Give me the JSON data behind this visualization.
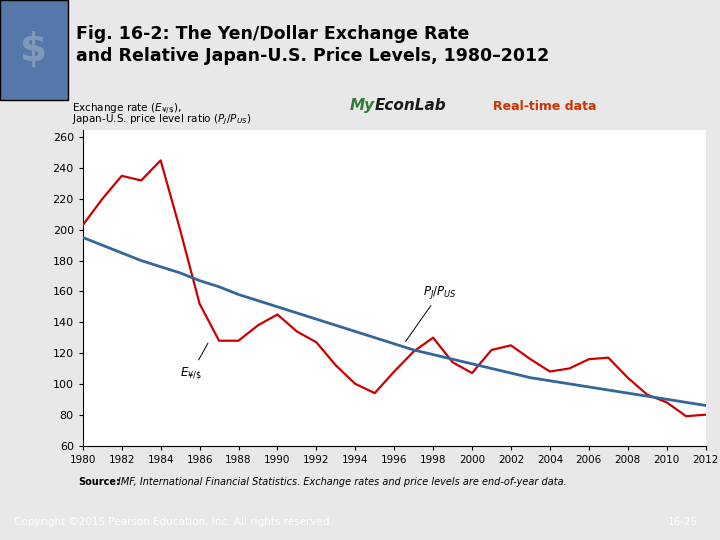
{
  "title": "Fig. 16-2: The Yen/Dollar Exchange Rate\nand Relative Japan-U.S. Price Levels, 1980–2012",
  "xlim": [
    1980,
    2012
  ],
  "ylim": [
    60,
    265
  ],
  "yticks": [
    60,
    80,
    100,
    120,
    140,
    160,
    180,
    200,
    220,
    240,
    260
  ],
  "xticks": [
    1980,
    1982,
    1984,
    1986,
    1988,
    1990,
    1992,
    1994,
    1996,
    1998,
    2000,
    2002,
    2004,
    2006,
    2008,
    2010,
    2012
  ],
  "exchange_rate_years": [
    1980,
    1981,
    1982,
    1983,
    1984,
    1985,
    1986,
    1987,
    1988,
    1989,
    1990,
    1991,
    1992,
    1993,
    1994,
    1995,
    1996,
    1997,
    1998,
    1999,
    2000,
    2001,
    2002,
    2003,
    2004,
    2005,
    2006,
    2007,
    2008,
    2009,
    2010,
    2011,
    2012
  ],
  "exchange_rate_values": [
    203,
    220,
    235,
    232,
    245,
    200,
    152,
    128,
    128,
    138,
    145,
    134,
    127,
    112,
    100,
    94,
    108,
    121,
    130,
    114,
    107,
    122,
    125,
    116,
    108,
    110,
    116,
    117,
    104,
    93,
    88,
    79,
    80
  ],
  "price_ratio_years": [
    1980,
    1981,
    1982,
    1983,
    1984,
    1985,
    1986,
    1987,
    1988,
    1989,
    1990,
    1991,
    1992,
    1993,
    1994,
    1995,
    1996,
    1997,
    1998,
    1999,
    2000,
    2001,
    2002,
    2003,
    2004,
    2005,
    2006,
    2007,
    2008,
    2009,
    2010,
    2011,
    2012
  ],
  "price_ratio_values": [
    195,
    190,
    185,
    180,
    176,
    172,
    167,
    163,
    158,
    154,
    150,
    146,
    142,
    138,
    134,
    130,
    126,
    122,
    119,
    116,
    113,
    110,
    107,
    104,
    102,
    100,
    98,
    96,
    94,
    92,
    90,
    88,
    86
  ],
  "exchange_color": "#cc0000",
  "price_color": "#336699",
  "plot_bg_color": "#ffffff",
  "fig_bg_color": "#e8e8e8",
  "title_bg_color": "#e0e0e0",
  "source_bg_color": "#f5e0c0",
  "bottom_bar_color": "#3399bb",
  "myeconlab_green": "#2e7d32",
  "myeconlab_dark": "#1a1a1a",
  "realtime_color": "#cc3300",
  "copyright_text": "Copyright ©2015 Pearson Education, Inc. All rights reserved.",
  "page_ref": "16-25",
  "source_text": "Source: IMF, International Financial Statistics. Exchange rates and price levels are end-of-year data."
}
